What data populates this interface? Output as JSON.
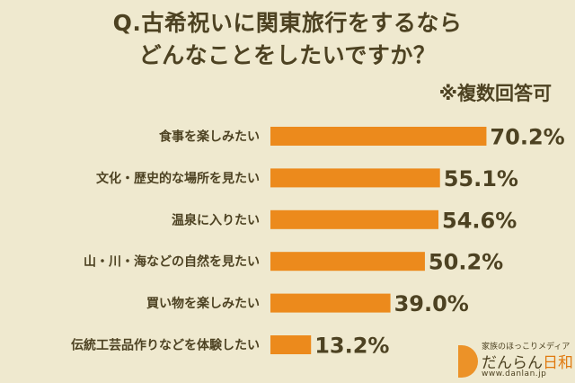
{
  "header": {
    "title_line1": "Q.古希祝いに関東旅行をするなら",
    "title_line2": "どんなことをしたいですか？",
    "note": "※複数回答可"
  },
  "brand": {
    "tagline": "家族のほっこりメディア",
    "name_main": "だんらん",
    "name_accent": "日和",
    "url": "www.danlan.jp"
  },
  "colors": {
    "background": "#efe9cf",
    "bar": "#ec8a1c",
    "text": "#4d4222"
  },
  "chart_data": {
    "type": "bar",
    "orientation": "horizontal",
    "categories": [
      "食事を楽しみたい",
      "文化・歴史的な場所を見たい",
      "温泉に入りたい",
      "山・川・海などの自然を見たい",
      "買い物を楽しみたい",
      "伝統工芸品作りなどを体験したい"
    ],
    "values": [
      70.2,
      55.1,
      54.6,
      50.2,
      39.0,
      13.2
    ],
    "value_labels": [
      "70.2%",
      "55.1%",
      "54.6%",
      "50.2%",
      "39.0%",
      "13.2%"
    ],
    "unit": "%",
    "xlim": [
      0,
      100
    ],
    "grid": false
  }
}
